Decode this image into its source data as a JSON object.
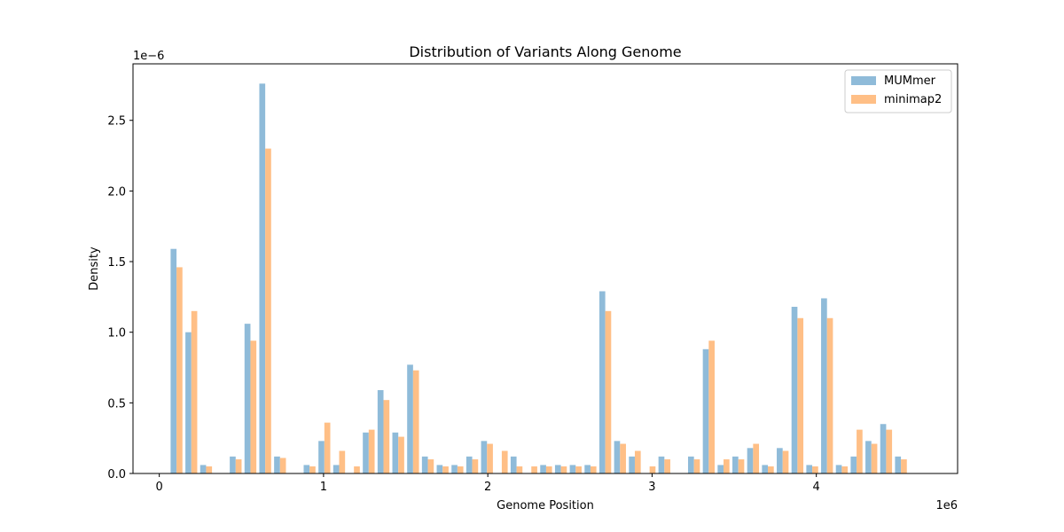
{
  "chart_data": {
    "type": "bar",
    "title": "Distribution of Variants Along Genome",
    "xlabel": "Genome Position",
    "ylabel": "Density",
    "x_offset_label": "1e6",
    "y_offset_label": "1e−6",
    "xlim": [
      -160000,
      4860000
    ],
    "ylim": [
      0,
      2.9
    ],
    "x_ticks": [
      0,
      1,
      2,
      3,
      4
    ],
    "x_tick_labels": [
      "0",
      "1",
      "2",
      "3",
      "4"
    ],
    "y_ticks": [
      0.0,
      0.5,
      1.0,
      1.5,
      2.0,
      2.5
    ],
    "y_tick_labels": [
      "0.0",
      "0.5",
      "1.0",
      "1.5",
      "2.0",
      "2.5"
    ],
    "bin_width": 90000,
    "bin_starts": [
      60000,
      150000,
      240000,
      330000,
      420000,
      510000,
      600000,
      690000,
      780000,
      870000,
      960000,
      1050000,
      1140000,
      1230000,
      1320000,
      1410000,
      1500000,
      1590000,
      1680000,
      1770000,
      1860000,
      1950000,
      2040000,
      2130000,
      2220000,
      2310000,
      2400000,
      2490000,
      2580000,
      2670000,
      2760000,
      2850000,
      2940000,
      3030000,
      3120000,
      3210000,
      3300000,
      3390000,
      3480000,
      3570000,
      3660000,
      3750000,
      3840000,
      3930000,
      4020000,
      4110000,
      4200000,
      4290000,
      4380000,
      4470000,
      4560000
    ],
    "series": [
      {
        "name": "MUMmer",
        "color": "#8fbbd9",
        "values": [
          1.59,
          1.0,
          0.06,
          0.0,
          0.12,
          1.06,
          2.76,
          0.12,
          0.0,
          0.06,
          0.23,
          0.06,
          0.0,
          0.29,
          0.59,
          0.29,
          0.77,
          0.12,
          0.06,
          0.06,
          0.12,
          0.23,
          0.0,
          0.12,
          0.0,
          0.06,
          0.06,
          0.06,
          0.06,
          1.29,
          0.23,
          0.12,
          0.0,
          0.12,
          0.0,
          0.12,
          0.88,
          0.06,
          0.12,
          0.18,
          0.06,
          0.18,
          1.18,
          0.06,
          1.24,
          0.06,
          0.12,
          0.23,
          0.35,
          0.12,
          0.0
        ]
      },
      {
        "name": "minimap2",
        "color": "#ffbf86",
        "values": [
          1.46,
          1.15,
          0.05,
          0.0,
          0.1,
          0.94,
          2.3,
          0.11,
          0.0,
          0.05,
          0.36,
          0.16,
          0.05,
          0.31,
          0.52,
          0.26,
          0.73,
          0.1,
          0.05,
          0.05,
          0.1,
          0.21,
          0.16,
          0.05,
          0.05,
          0.05,
          0.05,
          0.05,
          0.05,
          1.15,
          0.21,
          0.16,
          0.05,
          0.1,
          0.0,
          0.1,
          0.94,
          0.1,
          0.1,
          0.21,
          0.05,
          0.16,
          1.1,
          0.05,
          1.1,
          0.05,
          0.31,
          0.21,
          0.31,
          0.1,
          0.0
        ]
      }
    ],
    "legend_position": "top-right",
    "grid": false
  }
}
